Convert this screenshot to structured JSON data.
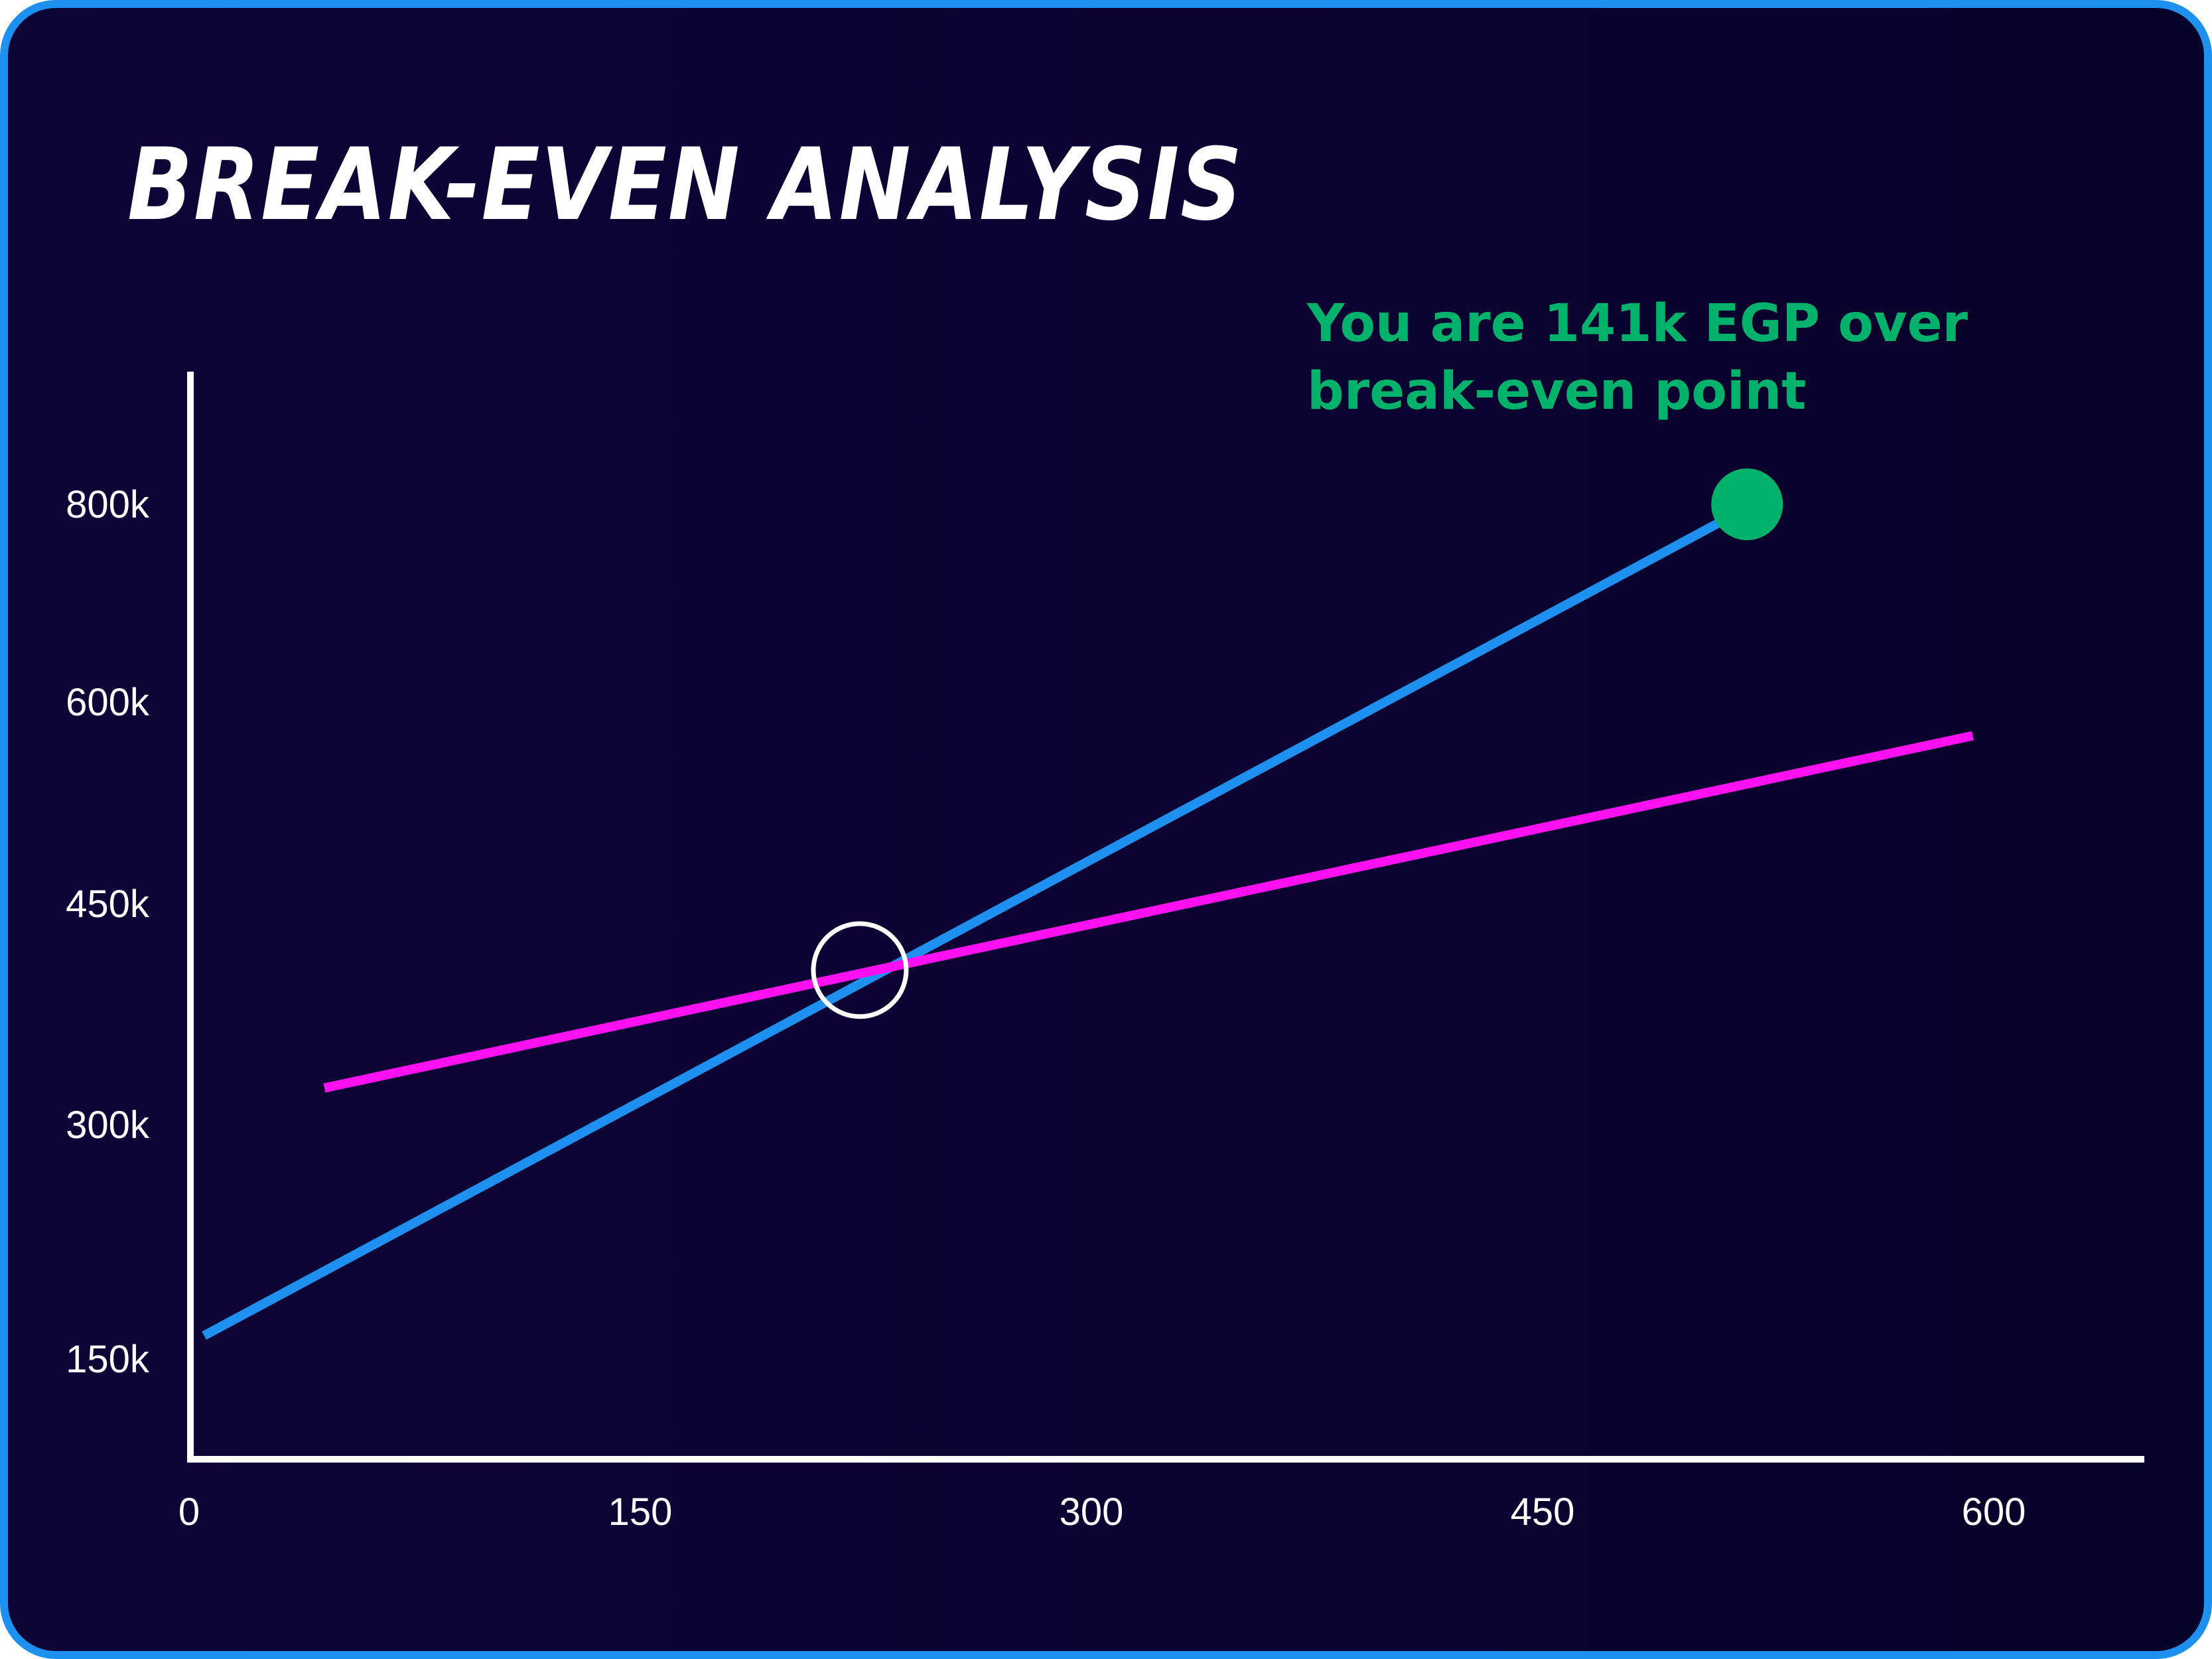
{
  "title": "BREAK-EVEN ANALYSIS",
  "annotation": {
    "line1": "You are 141k EGP over",
    "line2": "break-even point",
    "color": "#00b26b"
  },
  "colors": {
    "frame": "#1e90f0",
    "background": "#0b0232",
    "axis": "#ffffff",
    "revenue_line": "#1e90f0",
    "cost_line": "#ff10f0",
    "current_point": "#00b26b",
    "break_even_marker": "#ffffff"
  },
  "chart_data": {
    "type": "line",
    "title": "BREAK-EVEN ANALYSIS",
    "xlabel": "",
    "ylabel": "",
    "x_ticks": [
      0,
      150,
      300,
      450,
      600
    ],
    "x_tick_labels": [
      "0",
      "150",
      "300",
      "450",
      "600"
    ],
    "y_ticks": [
      150000,
      300000,
      450000,
      600000,
      800000
    ],
    "y_tick_labels": [
      "150k",
      "300k",
      "450k",
      "600k",
      "800k"
    ],
    "grid": false,
    "legend": "none",
    "series": [
      {
        "color": "#1e90f0",
        "x": [
          5,
          517
        ],
        "y": [
          165000,
          795000
        ]
      },
      {
        "color": "#ff10f0",
        "x": [
          45,
          593
        ],
        "y": [
          325000,
          575000
        ]
      }
    ],
    "markers": [
      {
        "kind": "break-even",
        "x": 223,
        "y": 405000,
        "style": "ring",
        "color": "#ffffff"
      },
      {
        "kind": "current",
        "x": 518,
        "y": 800000,
        "style": "dot",
        "color": "#00b26b"
      }
    ]
  }
}
